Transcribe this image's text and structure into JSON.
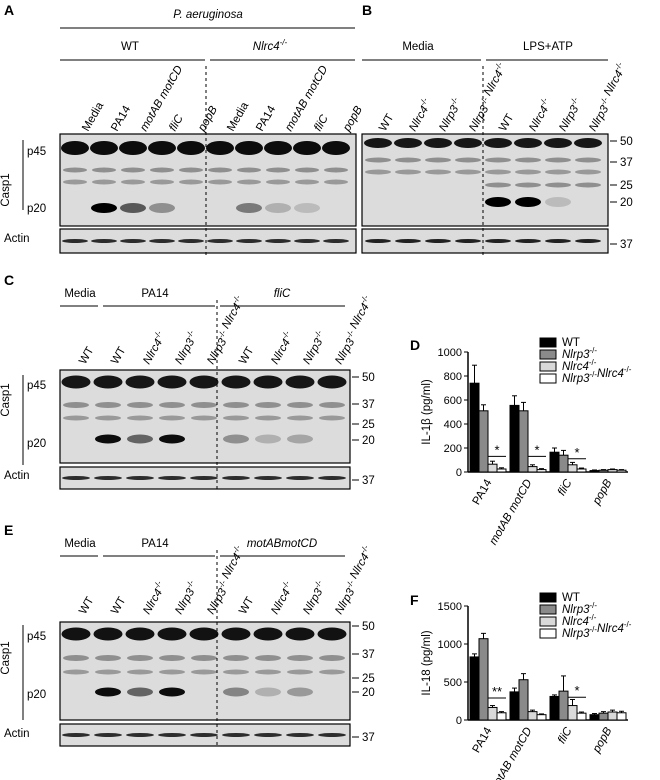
{
  "panels": {
    "A": {
      "letter": "A",
      "organism": "P. aeruginosa",
      "group_wt": "WT",
      "group_ko": "Nlrc4",
      "group_ko_sup": "-/-",
      "lanes": [
        "Media",
        "PA14",
        "motAB motCD",
        "fliC",
        "popB",
        "Media",
        "PA14",
        "motAB motCD",
        "fliC",
        "popB"
      ],
      "row_casp1": "Casp1",
      "band_p45": "p45",
      "band_p20": "p20",
      "row_actin": "Actin"
    },
    "B": {
      "letter": "B",
      "group_media": "Media",
      "group_lps": "LPS+ATP",
      "lanes": [
        "WT",
        "Nlrc4-/-",
        "Nlrp3-/-",
        "Nlrp3-/- Nlrc4-/-",
        "WT",
        "Nlrc4-/-",
        "Nlrp3-/-",
        "Nlrp3-/- Nlrc4-/-"
      ],
      "markers": [
        "50",
        "37",
        "25",
        "20",
        "37"
      ]
    },
    "C": {
      "letter": "C",
      "group_media": "Media",
      "group_pa14": "PA14",
      "group_flic": "fliC",
      "lanes": [
        "WT",
        "WT",
        "Nlrc4-/-",
        "Nlrp3-/-",
        "Nlrp3-/- Nlrc4-/-",
        "WT",
        "Nlrc4-/-",
        "Nlrp3-/-",
        "Nlrp3-/- Nlrc4-/-"
      ],
      "markers": [
        "50",
        "37",
        "25",
        "20",
        "37"
      ],
      "row_casp1": "Casp1",
      "band_p45": "p45",
      "band_p20": "p20",
      "row_actin": "Actin"
    },
    "E": {
      "letter": "E",
      "group_media": "Media",
      "group_pa14": "PA14",
      "group_mot": "motABmotCD",
      "lanes": [
        "WT",
        "WT",
        "Nlrc4-/-",
        "Nlrp3-/-",
        "Nlrp3-/- Nlrc4-/-",
        "WT",
        "Nlrc4-/-",
        "Nlrp3-/-",
        "Nlrp3-/- Nlrc4-/-"
      ],
      "markers": [
        "50",
        "37",
        "25",
        "20",
        "37"
      ],
      "row_casp1": "Casp1",
      "band_p45": "p45",
      "band_p20": "p20",
      "row_actin": "Actin"
    }
  },
  "legend": [
    "WT",
    "Nlrp3-/-",
    "Nlrc4-/-",
    "Nlrp3-/-Nlrc4-/-"
  ],
  "legend_colors": [
    "#000000",
    "#8a8a8a",
    "#d9d9d9",
    "#ffffff"
  ],
  "chart_data": [
    {
      "panel": "D",
      "type": "bar",
      "ylabel": "IL-1β (pg/ml)",
      "ylim": [
        0,
        1000
      ],
      "yticks": [
        0,
        200,
        400,
        600,
        800,
        1000
      ],
      "categories": [
        "PA14",
        "motAB motCD",
        "fliC",
        "popB"
      ],
      "series": [
        {
          "name": "WT",
          "values": [
            740,
            555,
            165,
            12
          ],
          "err": [
            150,
            80,
            35,
            5
          ]
        },
        {
          "name": "Nlrp3-/-",
          "values": [
            510,
            510,
            140,
            15
          ],
          "err": [
            50,
            70,
            40,
            5
          ]
        },
        {
          "name": "Nlrc4-/-",
          "values": [
            65,
            45,
            60,
            20
          ],
          "err": [
            25,
            15,
            20,
            5
          ]
        },
        {
          "name": "Nlrp3-/-Nlrc4-/-",
          "values": [
            25,
            20,
            25,
            15
          ],
          "err": [
            10,
            8,
            8,
            5
          ]
        }
      ],
      "annotations": [
        "*",
        "*",
        "*"
      ]
    },
    {
      "panel": "F",
      "type": "bar",
      "ylabel": "IL-18 (pg/ml)",
      "ylim": [
        0,
        1500
      ],
      "yticks": [
        0,
        500,
        1000,
        1500
      ],
      "categories": [
        "PA14",
        "motAB motCD",
        "fliC",
        "popB"
      ],
      "series": [
        {
          "name": "WT",
          "values": [
            830,
            370,
            310,
            70
          ],
          "err": [
            40,
            50,
            20,
            15
          ]
        },
        {
          "name": "Nlrp3-/-",
          "values": [
            1070,
            530,
            380,
            90
          ],
          "err": [
            70,
            80,
            200,
            20
          ]
        },
        {
          "name": "Nlrc4-/-",
          "values": [
            165,
            110,
            190,
            105
          ],
          "err": [
            25,
            20,
            80,
            25
          ]
        },
        {
          "name": "Nlrp3-/-Nlrc4-/-",
          "values": [
            95,
            70,
            90,
            95
          ],
          "err": [
            15,
            10,
            15,
            20
          ]
        }
      ],
      "annotations": [
        "**",
        "*"
      ]
    }
  ]
}
